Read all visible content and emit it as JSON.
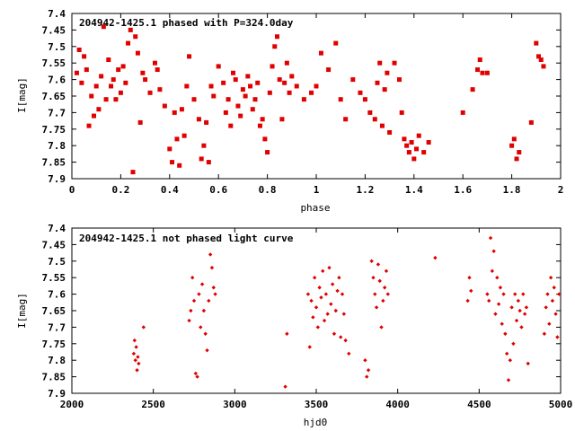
{
  "marker_color": "#e00000",
  "chart_data": [
    {
      "type": "scatter",
      "title": "204942-1425.1 phased with P=324.0day",
      "xlabel": "phase",
      "ylabel": "I[mag]",
      "xlim": [
        0,
        2
      ],
      "ylim": [
        7.4,
        7.9
      ],
      "y_inverted": true,
      "grid": false,
      "legend": "none",
      "xticks": [
        "0",
        "0.2",
        "0.4",
        "0.6",
        "0.8",
        "1",
        "1.2",
        "1.4",
        "1.6",
        "1.8",
        "2"
      ],
      "yticks": [
        "7.4",
        "7.45",
        "7.5",
        "7.55",
        "7.6",
        "7.65",
        "7.7",
        "7.75",
        "7.8",
        "7.85",
        "7.9"
      ],
      "marker": "filled-square",
      "series": [
        {
          "x": [
            0.02,
            0.03,
            0.04,
            0.05,
            0.06,
            0.07,
            0.08,
            0.09,
            0.1,
            0.11,
            0.12,
            0.13,
            0.14,
            0.15,
            0.16,
            0.17,
            0.18,
            0.19,
            0.2,
            0.21,
            0.22,
            0.23,
            0.24,
            0.25,
            0.26,
            0.27,
            0.28,
            0.29,
            0.3,
            0.32,
            0.34,
            0.35,
            0.36,
            0.38,
            0.4,
            0.41,
            0.42,
            0.43,
            0.44,
            0.45,
            0.46,
            0.47,
            0.48,
            0.5,
            0.52,
            0.53,
            0.54,
            0.55,
            0.56,
            0.57,
            0.58,
            0.6,
            0.62,
            0.63,
            0.64,
            0.65,
            0.66,
            0.67,
            0.68,
            0.69,
            0.7,
            0.71,
            0.72,
            0.73,
            0.74,
            0.75,
            0.76,
            0.77,
            0.78,
            0.79,
            0.8,
            0.81,
            0.82,
            0.83,
            0.84,
            0.85,
            0.86,
            0.87,
            0.88,
            0.89,
            0.9,
            0.92,
            0.95,
            0.98,
            1.0,
            1.02,
            1.05,
            1.08,
            1.1,
            1.12,
            1.15,
            1.18,
            1.2,
            1.22,
            1.24,
            1.25,
            1.26,
            1.27,
            1.28,
            1.29,
            1.3,
            1.32,
            1.34,
            1.35,
            1.36,
            1.37,
            1.38,
            1.39,
            1.4,
            1.41,
            1.42,
            1.44,
            1.46,
            1.6,
            1.64,
            1.66,
            1.67,
            1.68,
            1.7,
            1.8,
            1.81,
            1.82,
            1.83,
            1.88,
            1.9,
            1.91,
            1.92,
            1.93
          ],
          "y": [
            7.58,
            7.51,
            7.61,
            7.53,
            7.57,
            7.74,
            7.65,
            7.71,
            7.62,
            7.69,
            7.59,
            7.44,
            7.66,
            7.54,
            7.62,
            7.6,
            7.66,
            7.57,
            7.64,
            7.56,
            7.61,
            7.49,
            7.45,
            7.88,
            7.47,
            7.52,
            7.73,
            7.58,
            7.6,
            7.64,
            7.55,
            7.57,
            7.63,
            7.68,
            7.81,
            7.85,
            7.7,
            7.78,
            7.86,
            7.69,
            7.77,
            7.62,
            7.53,
            7.66,
            7.72,
            7.84,
            7.8,
            7.73,
            7.85,
            7.62,
            7.65,
            7.56,
            7.61,
            7.7,
            7.66,
            7.74,
            7.58,
            7.6,
            7.68,
            7.71,
            7.63,
            7.65,
            7.59,
            7.62,
            7.69,
            7.66,
            7.61,
            7.74,
            7.72,
            7.78,
            7.82,
            7.64,
            7.56,
            7.5,
            7.47,
            7.6,
            7.72,
            7.61,
            7.55,
            7.64,
            7.59,
            7.62,
            7.66,
            7.64,
            7.62,
            7.52,
            7.57,
            7.49,
            7.66,
            7.72,
            7.6,
            7.64,
            7.66,
            7.7,
            7.72,
            7.61,
            7.55,
            7.74,
            7.63,
            7.58,
            7.76,
            7.55,
            7.6,
            7.7,
            7.78,
            7.8,
            7.82,
            7.79,
            7.84,
            7.81,
            7.77,
            7.82,
            7.79,
            7.7,
            7.63,
            7.57,
            7.54,
            7.58,
            7.58,
            7.8,
            7.78,
            7.84,
            7.82,
            7.73,
            7.49,
            7.53,
            7.54,
            7.56
          ]
        }
      ]
    },
    {
      "type": "scatter",
      "title": "204942-1425.1 not phased light curve",
      "xlabel": "hjd0",
      "ylabel": "I[mag]",
      "xlim": [
        2000,
        5000
      ],
      "ylim": [
        7.4,
        7.9
      ],
      "y_inverted": true,
      "grid": false,
      "legend": "none",
      "xticks": [
        "2000",
        "2500",
        "3000",
        "3500",
        "4000",
        "4500",
        "5000"
      ],
      "yticks": [
        "7.4",
        "7.45",
        "7.5",
        "7.55",
        "7.6",
        "7.65",
        "7.7",
        "7.75",
        "7.8",
        "7.85",
        "7.9"
      ],
      "marker": "small-diamond",
      "series": [
        {
          "x": [
            2380,
            2385,
            2390,
            2395,
            2400,
            2405,
            2410,
            2440,
            2720,
            2730,
            2740,
            2750,
            2760,
            2770,
            2780,
            2790,
            2800,
            2810,
            2820,
            2830,
            2840,
            2850,
            2860,
            2870,
            2880,
            3310,
            3320,
            3450,
            3460,
            3470,
            3480,
            3490,
            3500,
            3510,
            3520,
            3530,
            3540,
            3550,
            3560,
            3570,
            3580,
            3590,
            3600,
            3610,
            3620,
            3630,
            3640,
            3650,
            3660,
            3670,
            3680,
            3700,
            3800,
            3810,
            3820,
            3840,
            3850,
            3860,
            3870,
            3880,
            3890,
            3900,
            3910,
            3920,
            3930,
            3940,
            4230,
            4430,
            4440,
            4450,
            4550,
            4560,
            4570,
            4580,
            4590,
            4600,
            4610,
            4620,
            4630,
            4640,
            4650,
            4660,
            4670,
            4680,
            4690,
            4700,
            4710,
            4720,
            4730,
            4740,
            4750,
            4760,
            4770,
            4780,
            4790,
            4800,
            4900,
            4910,
            4920,
            4930,
            4940,
            4950,
            4960,
            4970,
            4980,
            4990
          ],
          "y": [
            7.78,
            7.74,
            7.8,
            7.76,
            7.83,
            7.79,
            7.81,
            7.7,
            7.68,
            7.65,
            7.55,
            7.62,
            7.84,
            7.85,
            7.6,
            7.7,
            7.57,
            7.65,
            7.72,
            7.77,
            7.62,
            7.48,
            7.52,
            7.58,
            7.6,
            7.88,
            7.72,
            7.6,
            7.76,
            7.62,
            7.67,
            7.55,
            7.64,
            7.7,
            7.58,
            7.61,
            7.53,
            7.68,
            7.6,
            7.66,
            7.52,
            7.63,
            7.57,
            7.72,
            7.65,
            7.59,
            7.55,
            7.73,
            7.6,
            7.66,
            7.74,
            7.78,
            7.8,
            7.85,
            7.83,
            7.5,
            7.55,
            7.6,
            7.64,
            7.51,
            7.56,
            7.7,
            7.62,
            7.58,
            7.53,
            7.6,
            7.49,
            7.62,
            7.55,
            7.59,
            7.6,
            7.62,
            7.43,
            7.53,
            7.47,
            7.66,
            7.55,
            7.63,
            7.58,
            7.69,
            7.6,
            7.72,
            7.78,
            7.86,
            7.8,
            7.64,
            7.75,
            7.6,
            7.68,
            7.62,
            7.65,
            7.7,
            7.6,
            7.66,
            7.64,
            7.81,
            7.72,
            7.64,
            7.6,
            7.69,
            7.55,
            7.62,
            7.58,
            7.66,
            7.73,
            7.6
          ]
        }
      ]
    }
  ]
}
